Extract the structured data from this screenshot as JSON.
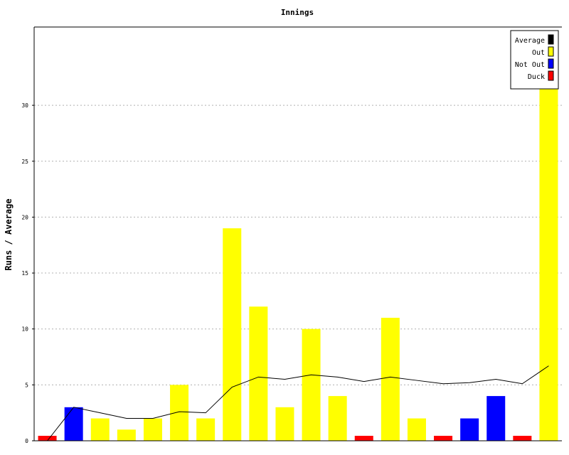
{
  "chart_data": {
    "type": "bar",
    "title": "Innings",
    "ylabel": "Runs / Average",
    "xlabel": "",
    "ylim": [
      0,
      37
    ],
    "yticks": [
      0,
      5,
      10,
      15,
      20,
      25,
      30
    ],
    "grid": "horizontal dotted",
    "legend_position": "top-right",
    "legend": [
      {
        "name": "Average",
        "color": "#000000"
      },
      {
        "name": "Out",
        "color": "#ffff00"
      },
      {
        "name": "Not Out",
        "color": "#0000ff"
      },
      {
        "name": "Duck",
        "color": "#ff0000"
      }
    ],
    "colors": {
      "Out": "#ffff00",
      "Not Out": "#0000ff",
      "Duck": "#ff0000"
    },
    "innings": [
      {
        "runs": 0,
        "status": "Duck"
      },
      {
        "runs": 3,
        "status": "Not Out"
      },
      {
        "runs": 2,
        "status": "Out"
      },
      {
        "runs": 1,
        "status": "Out"
      },
      {
        "runs": 2,
        "status": "Out"
      },
      {
        "runs": 5,
        "status": "Out"
      },
      {
        "runs": 2,
        "status": "Out"
      },
      {
        "runs": 19,
        "status": "Out"
      },
      {
        "runs": 12,
        "status": "Out"
      },
      {
        "runs": 3,
        "status": "Out"
      },
      {
        "runs": 10,
        "status": "Out"
      },
      {
        "runs": 4,
        "status": "Out"
      },
      {
        "runs": 0,
        "status": "Duck"
      },
      {
        "runs": 11,
        "status": "Out"
      },
      {
        "runs": 2,
        "status": "Out"
      },
      {
        "runs": 0,
        "status": "Duck"
      },
      {
        "runs": 2,
        "status": "Not Out"
      },
      {
        "runs": 4,
        "status": "Not Out"
      },
      {
        "runs": 0,
        "status": "Duck"
      },
      {
        "runs": 32,
        "status": "Out"
      }
    ],
    "average": [
      0,
      3,
      2.5,
      2,
      2,
      2.6,
      2.5,
      4.8,
      5.7,
      5.5,
      5.9,
      5.7,
      5.3,
      5.7,
      5.4,
      5.1,
      5.2,
      5.5,
      5.1,
      6.7
    ]
  }
}
